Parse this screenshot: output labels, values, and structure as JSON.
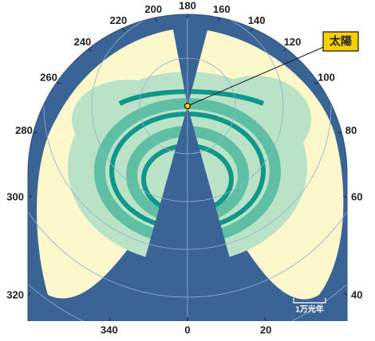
{
  "longitude_labels": [
    0,
    20,
    40,
    60,
    80,
    100,
    120,
    140,
    160,
    180,
    200,
    220,
    240,
    260,
    280,
    300,
    320,
    340
  ],
  "sun_label": "太陽",
  "scale_label": "1万光年"
}
